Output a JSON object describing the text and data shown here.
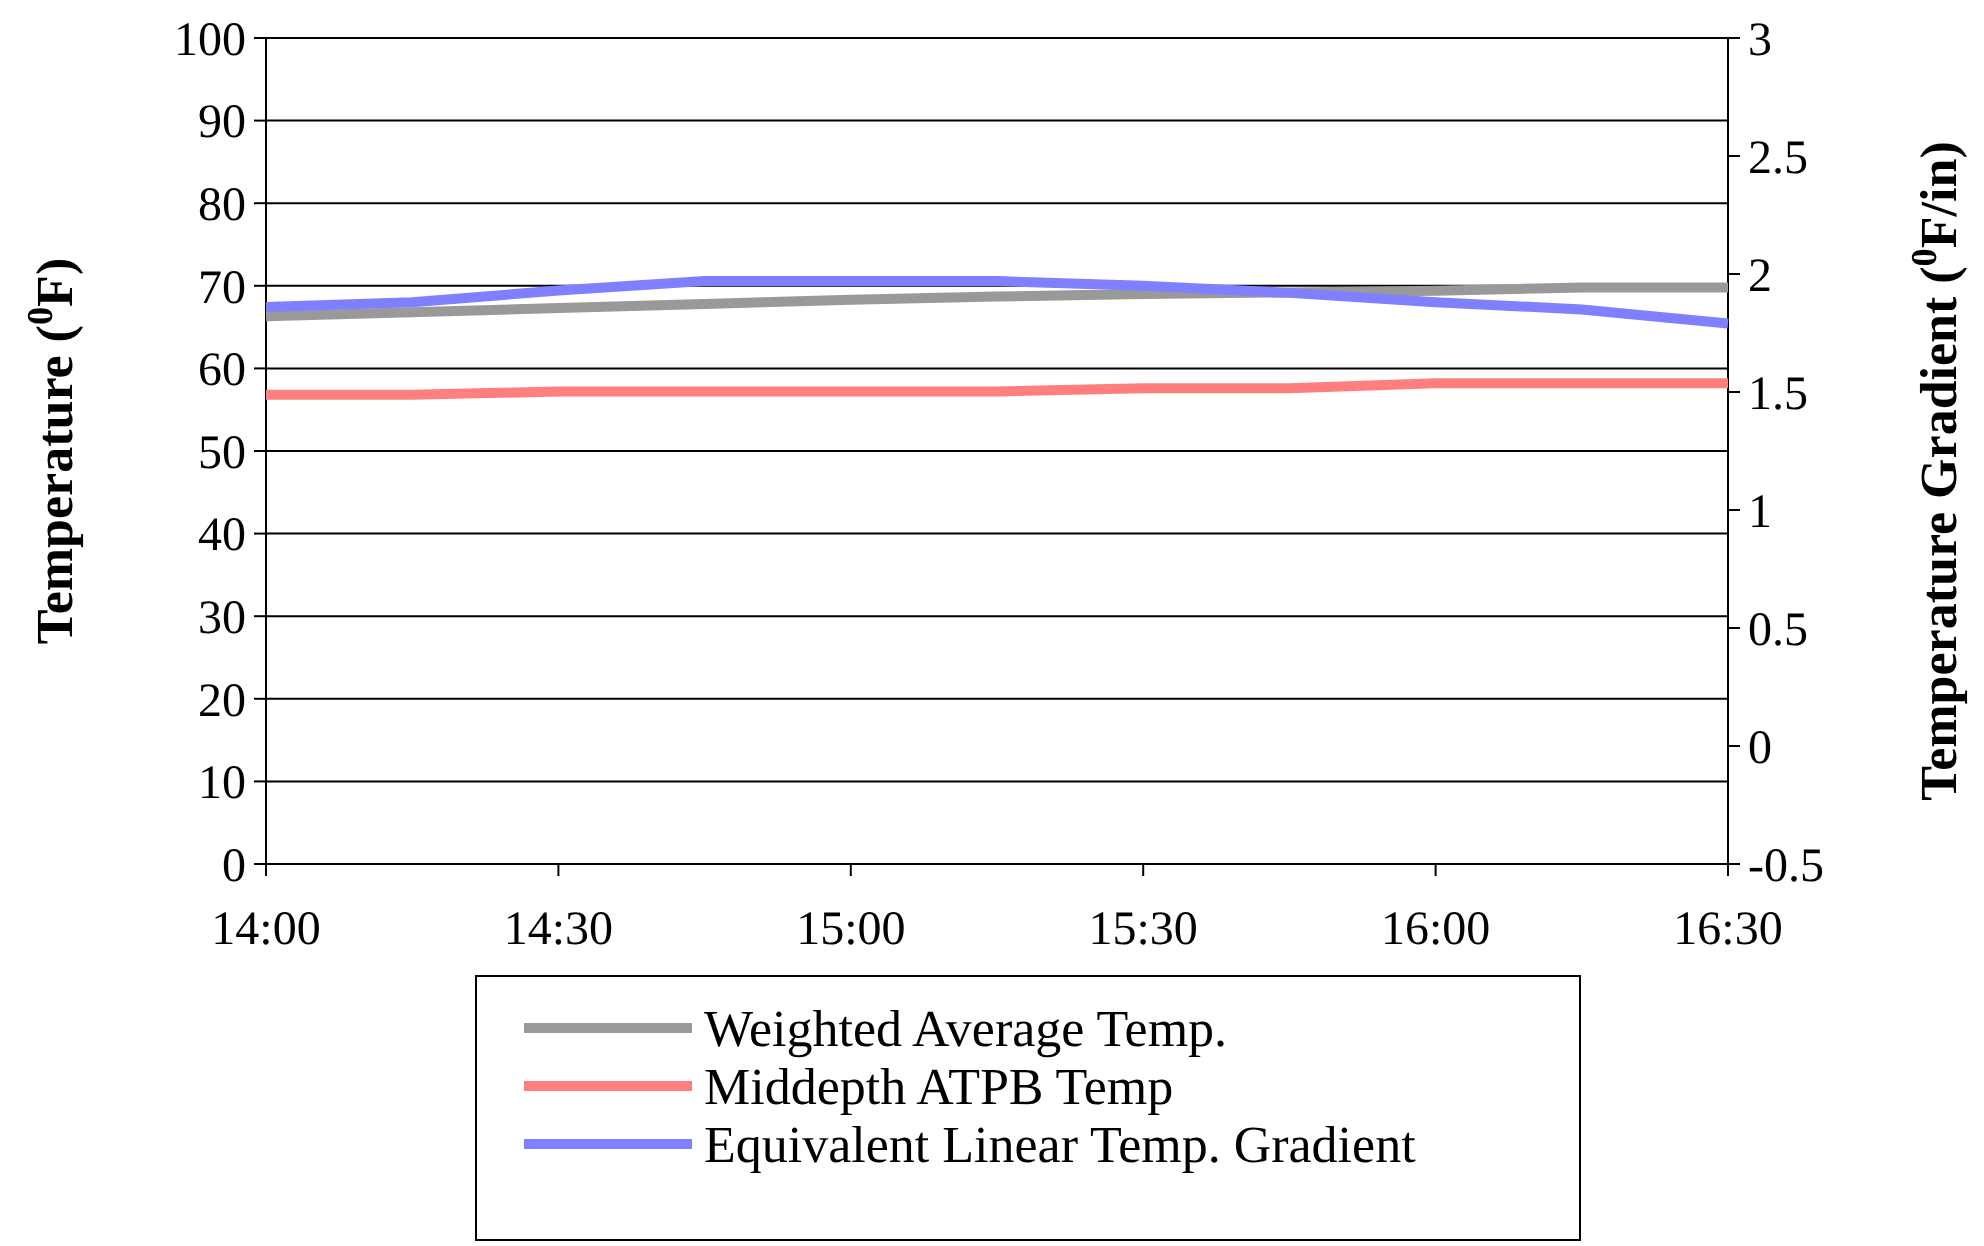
{
  "chart_data": {
    "type": "line",
    "ylabel": "Temperature ($^{0}$F)",
    "y2label": "Temperature Gradient ($^{0}$F/in)",
    "x": [
      14,
      14.25,
      14.5,
      14.75,
      15,
      15.25,
      15.5,
      15.75,
      16,
      16.25,
      16.5
    ],
    "xlim": [
      14,
      16.5
    ],
    "xticks": [
      {
        "value": 14,
        "label": "14:00"
      },
      {
        "value": 14.5,
        "label": "14:30"
      },
      {
        "value": 15,
        "label": "15:00"
      },
      {
        "value": 15.5,
        "label": "15:30"
      },
      {
        "value": 16,
        "label": "16:00"
      },
      {
        "value": 16.5,
        "label": "16:30"
      }
    ],
    "ylim": [
      0,
      100
    ],
    "yticks": [
      0,
      10,
      20,
      30,
      40,
      50,
      60,
      70,
      80,
      90,
      100
    ],
    "y2lim": [
      -0.5,
      3
    ],
    "y2ticks": [
      -0.5,
      0,
      0.5,
      1,
      1.5,
      2,
      2.5,
      3
    ],
    "grid": "y",
    "legend": "bottom",
    "marker": "none",
    "line_style": "solid",
    "series": [
      {
        "name": "Weighted Average Temp.",
        "color": "#999999",
        "values": [
          66.3,
          66.8,
          67.3,
          67.8,
          68.3,
          68.7,
          69,
          69.2,
          69.4,
          69.8,
          69.8
        ]
      },
      {
        "name": "Middepth ATPB Temp",
        "color": "#ff7f7f",
        "values": [
          56.8,
          56.8,
          57.2,
          57.2,
          57.2,
          57.2,
          57.6,
          57.6,
          58.2,
          58.2,
          58.2
        ]
      },
      {
        "name": "Equivalent Linear Temp. Gradient",
        "color": "#7f7fff",
        "axis": "y2",
        "values": [
          1.86,
          1.88,
          1.93,
          1.97,
          1.97,
          1.97,
          1.95,
          1.92,
          1.88,
          1.85,
          1.79
        ]
      }
    ]
  }
}
